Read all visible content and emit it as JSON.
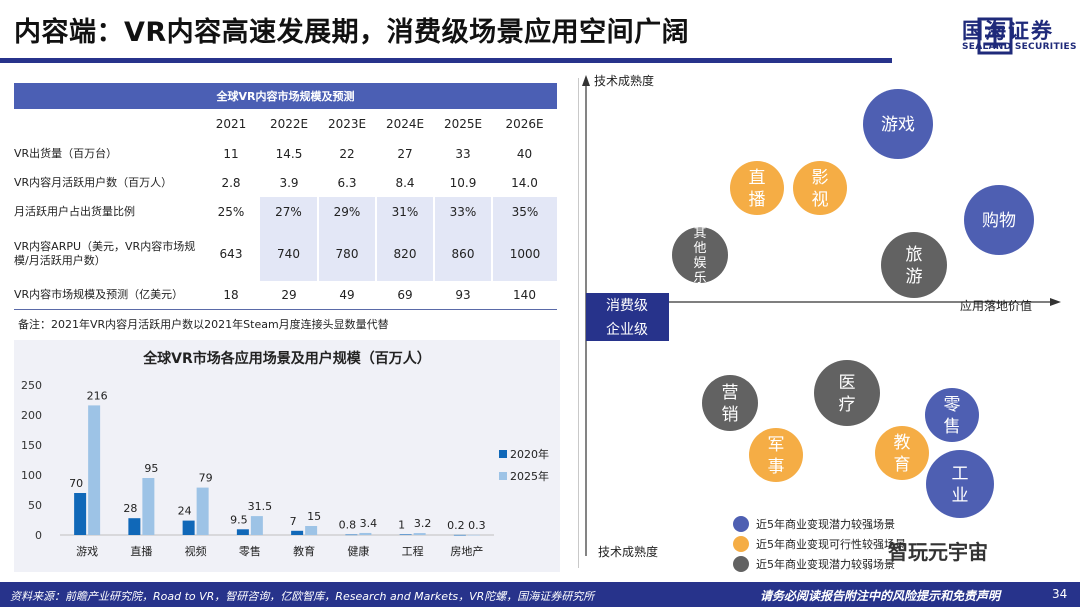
{
  "title": "内容端：VR内容高速发展期，消费级场景应用空间广阔",
  "brand": {
    "name_cn": "国海证券",
    "name_en": "SEALAND SECURITIES",
    "primary": "#27338b"
  },
  "table": {
    "title": "全球VR内容市场规模及预测",
    "columns": [
      "2021",
      "2022E",
      "2023E",
      "2024E",
      "2025E",
      "2026E"
    ],
    "rows": [
      {
        "label": "VR出货量（百万台）",
        "values": [
          "11",
          "14.5",
          "22",
          "27",
          "33",
          "40"
        ]
      },
      {
        "label": "VR内容月活跃用户数（百万人）",
        "values": [
          "2.8",
          "3.9",
          "6.3",
          "8.4",
          "10.9",
          "14.0"
        ]
      },
      {
        "label": "月活跃用户占出货量比例",
        "values": [
          "25%",
          "27%",
          "29%",
          "31%",
          "33%",
          "35%"
        ]
      },
      {
        "label": "VR内容ARPU（美元，VR内容市场规模/月活跃用户数）",
        "values": [
          "643",
          "740",
          "780",
          "820",
          "860",
          "1000"
        ]
      },
      {
        "label": "VR内容市场规模及预测（亿美元）",
        "values": [
          "18",
          "29",
          "49",
          "69",
          "93",
          "140"
        ]
      }
    ],
    "note": "备注：2021年VR内容月活跃用户数以2021年Steam月度连接头显数量代替"
  },
  "chart_data": [
    {
      "type": "bar",
      "title": "全球VR市场各应用场景及用户规模（百万人）",
      "categories": [
        "游戏",
        "直播",
        "视频",
        "零售",
        "教育",
        "健康",
        "工程",
        "房地产"
      ],
      "series": [
        {
          "name": "2020年",
          "color": "#1068b8",
          "values": [
            70,
            28,
            24,
            9.5,
            7,
            0.8,
            1,
            0.2
          ]
        },
        {
          "name": "2025年",
          "color": "#9dc3e6",
          "values": [
            216,
            95,
            79,
            31.5,
            15,
            3.4,
            3.2,
            0.3
          ]
        }
      ],
      "ylim": [
        0,
        250
      ],
      "yticks": [
        0,
        50,
        100,
        150,
        200,
        250
      ],
      "legend": "right"
    },
    {
      "type": "scatter",
      "xlabel": "应用落地价值",
      "ylabel_top": "技术成熟度",
      "ylabel_bottom": "技术成熟度",
      "quadrant_labels": {
        "upper": "消费级",
        "lower": "企业级"
      },
      "categories": {
        "strong": {
          "label": "近5年商业变现潜力较强场景",
          "color": "#4e5fb2"
        },
        "medium": {
          "label": "近5年商业变现可行性较强场景",
          "color": "#f5ad45"
        },
        "weak": {
          "label": "近5年商业变现潜力较弱场景",
          "color": "#626262"
        }
      },
      "points": [
        {
          "label": "游戏",
          "category": "strong"
        },
        {
          "label": "购物",
          "category": "strong"
        },
        {
          "label": "直播",
          "category": "medium"
        },
        {
          "label": "影视",
          "category": "medium"
        },
        {
          "label": "其他娱乐",
          "category": "weak"
        },
        {
          "label": "旅游",
          "category": "weak"
        },
        {
          "label": "营销",
          "category": "weak"
        },
        {
          "label": "医疗",
          "category": "weak"
        },
        {
          "label": "零售",
          "category": "strong"
        },
        {
          "label": "军事",
          "category": "medium"
        },
        {
          "label": "教育",
          "category": "medium"
        },
        {
          "label": "工业",
          "category": "strong"
        }
      ]
    }
  ],
  "footer": {
    "source": "资料来源：前瞻产业研究院，Road to VR，智研咨询，亿欧智库，Research and Markets，VR陀螺，国海证券研究所",
    "disclaimer": "请务必阅读报告附注中的风险提示和免责声明",
    "page": "34"
  },
  "watermark": {
    "text": "智玩元宇宙"
  }
}
